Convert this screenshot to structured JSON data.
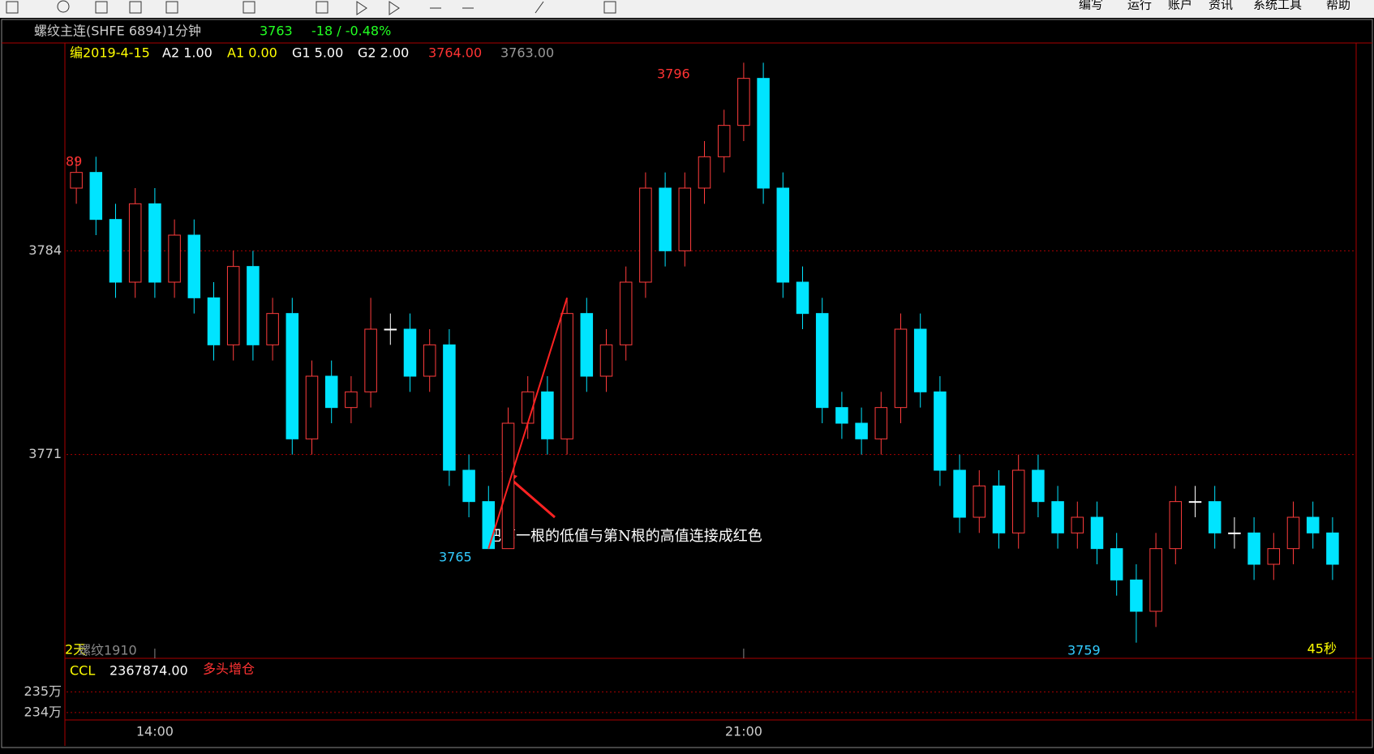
{
  "menu": [
    "编写",
    "运行",
    "账户",
    "资讯",
    "系统工具",
    "帮助"
  ],
  "header": {
    "symbol": "螺纹主连(SHFE 6894)1分钟",
    "last": "3763",
    "change": "-18 / -0.48%"
  },
  "legend": {
    "date": "编2019-4-15",
    "a2": "A2 1.00",
    "a1": "A1 0.00",
    "g1": "G1 5.00",
    "g2": "G2 2.00",
    "price_red": "3764.00",
    "price_grey": "3763.00"
  },
  "annotations": {
    "left_top": "89",
    "high": "3796",
    "low1": "3765",
    "low2": "3759",
    "note": "把第一根的低值与第N根的高值连接成红色",
    "days": "2天",
    "contract": "螺纹1910",
    "countdown": "45秒"
  },
  "sub_panel": {
    "name": "CCL",
    "value": "2367874.00",
    "status": "多头增仓",
    "ylim": [
      2338000,
      2356000
    ],
    "yticks": [
      {
        "value": 2350000,
        "label": "235万"
      },
      {
        "value": 2340000,
        "label": "234万"
      }
    ]
  },
  "chart_data": {
    "type": "candlestick",
    "ylim": [
      3758,
      3797
    ],
    "yticks": [
      3771,
      3784
    ],
    "grid": true,
    "up_color": "#ff3c3c",
    "down_color": "#00e4ff",
    "xticks": [
      {
        "value": 4,
        "label": "14:00"
      },
      {
        "value": 34,
        "label": "21:00"
      }
    ],
    "open": [
      3788,
      3789,
      3786,
      3782,
      3787,
      3782,
      3785,
      3781,
      3778,
      3783,
      3778,
      3780,
      3772,
      3776,
      3774,
      3775,
      3779,
      3779,
      3776,
      3778,
      3770,
      3768,
      3765,
      3773,
      3775,
      3772,
      3780,
      3776,
      3778,
      3782,
      3788,
      3784,
      3788,
      3790,
      3792,
      3795,
      3788,
      3782,
      3780,
      3774,
      3773,
      3772,
      3774,
      3779,
      3775,
      3770,
      3767,
      3769,
      3766,
      3770,
      3768,
      3766,
      3767,
      3765,
      3763,
      3761,
      3765,
      3768,
      3768,
      3766,
      3766,
      3764,
      3765,
      3767,
      3766
    ],
    "high": [
      3790,
      3790,
      3787,
      3788,
      3788,
      3786,
      3786,
      3782,
      3784,
      3784,
      3781,
      3781,
      3777,
      3777,
      3776,
      3781,
      3780,
      3780,
      3779,
      3779,
      3771,
      3769,
      3774,
      3776,
      3776,
      3781,
      3781,
      3779,
      3783,
      3789,
      3789,
      3789,
      3791,
      3793,
      3796,
      3796,
      3789,
      3783,
      3781,
      3775,
      3774,
      3775,
      3780,
      3780,
      3776,
      3771,
      3770,
      3770,
      3771,
      3771,
      3769,
      3768,
      3768,
      3766,
      3764,
      3766,
      3769,
      3769,
      3769,
      3767,
      3767,
      3766,
      3768,
      3768,
      3767
    ],
    "low": [
      3787,
      3785,
      3781,
      3781,
      3781,
      3781,
      3780,
      3777,
      3777,
      3777,
      3777,
      3771,
      3771,
      3773,
      3773,
      3774,
      3778,
      3775,
      3775,
      3769,
      3767,
      3765,
      3765,
      3772,
      3771,
      3771,
      3775,
      3775,
      3777,
      3781,
      3783,
      3783,
      3787,
      3789,
      3791,
      3787,
      3781,
      3779,
      3773,
      3772,
      3771,
      3771,
      3773,
      3774,
      3769,
      3766,
      3766,
      3765,
      3765,
      3767,
      3765,
      3765,
      3764,
      3762,
      3759,
      3760,
      3764,
      3767,
      3765,
      3765,
      3763,
      3763,
      3764,
      3765,
      3763
    ],
    "close": [
      3789,
      3786,
      3782,
      3787,
      3782,
      3785,
      3781,
      3778,
      3783,
      3778,
      3780,
      3772,
      3776,
      3774,
      3775,
      3779,
      3779,
      3776,
      3778,
      3770,
      3768,
      3765,
      3773,
      3775,
      3772,
      3780,
      3776,
      3778,
      3782,
      3788,
      3784,
      3788,
      3790,
      3792,
      3795,
      3788,
      3782,
      3780,
      3774,
      3773,
      3772,
      3774,
      3779,
      3775,
      3770,
      3767,
      3769,
      3766,
      3770,
      3768,
      3766,
      3767,
      3765,
      3763,
      3761,
      3765,
      3768,
      3768,
      3766,
      3766,
      3764,
      3765,
      3767,
      3766,
      3764
    ]
  }
}
